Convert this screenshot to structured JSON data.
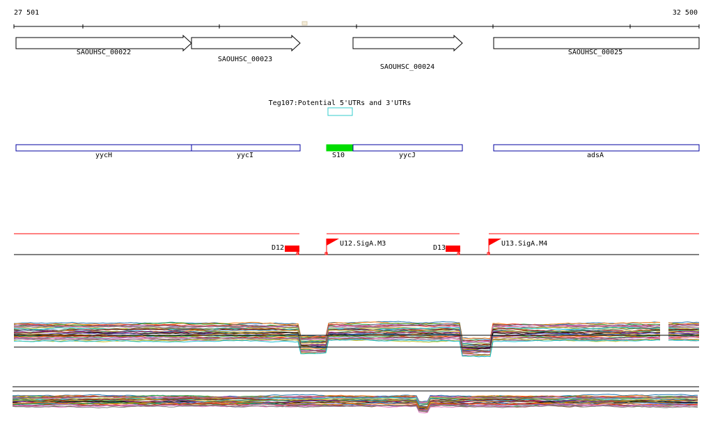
{
  "ruler": {
    "start_label": "27 501",
    "end_label": "32 500"
  },
  "genes": [
    {
      "name": "SAOUHSC_00022"
    },
    {
      "name": "SAOUHSC_00023"
    },
    {
      "name": "SAOUHSC_00024"
    },
    {
      "name": "SAOUHSC_00025"
    }
  ],
  "utr_track": {
    "label": "Teg107:Potential 5'UTRs and 3'UTRs"
  },
  "annotations": [
    {
      "name": "yycH",
      "color": "#0000a0"
    },
    {
      "name": "yycI",
      "color": "#0000a0"
    },
    {
      "name": "S10",
      "color": "#00dd00"
    },
    {
      "name": "yycJ",
      "color": "#0000a0"
    },
    {
      "name": "adsA",
      "color": "#0000a0"
    }
  ],
  "regulatory": {
    "color": "#ff0000",
    "terminators": [
      {
        "label": "D12"
      },
      {
        "label": "D13"
      }
    ],
    "promoters": [
      {
        "label": "U12.SigA.M3"
      },
      {
        "label": "U13.SigA.M4"
      }
    ]
  },
  "colors": {
    "utr_box": "#33cccc",
    "track_line": "#ff0000"
  }
}
